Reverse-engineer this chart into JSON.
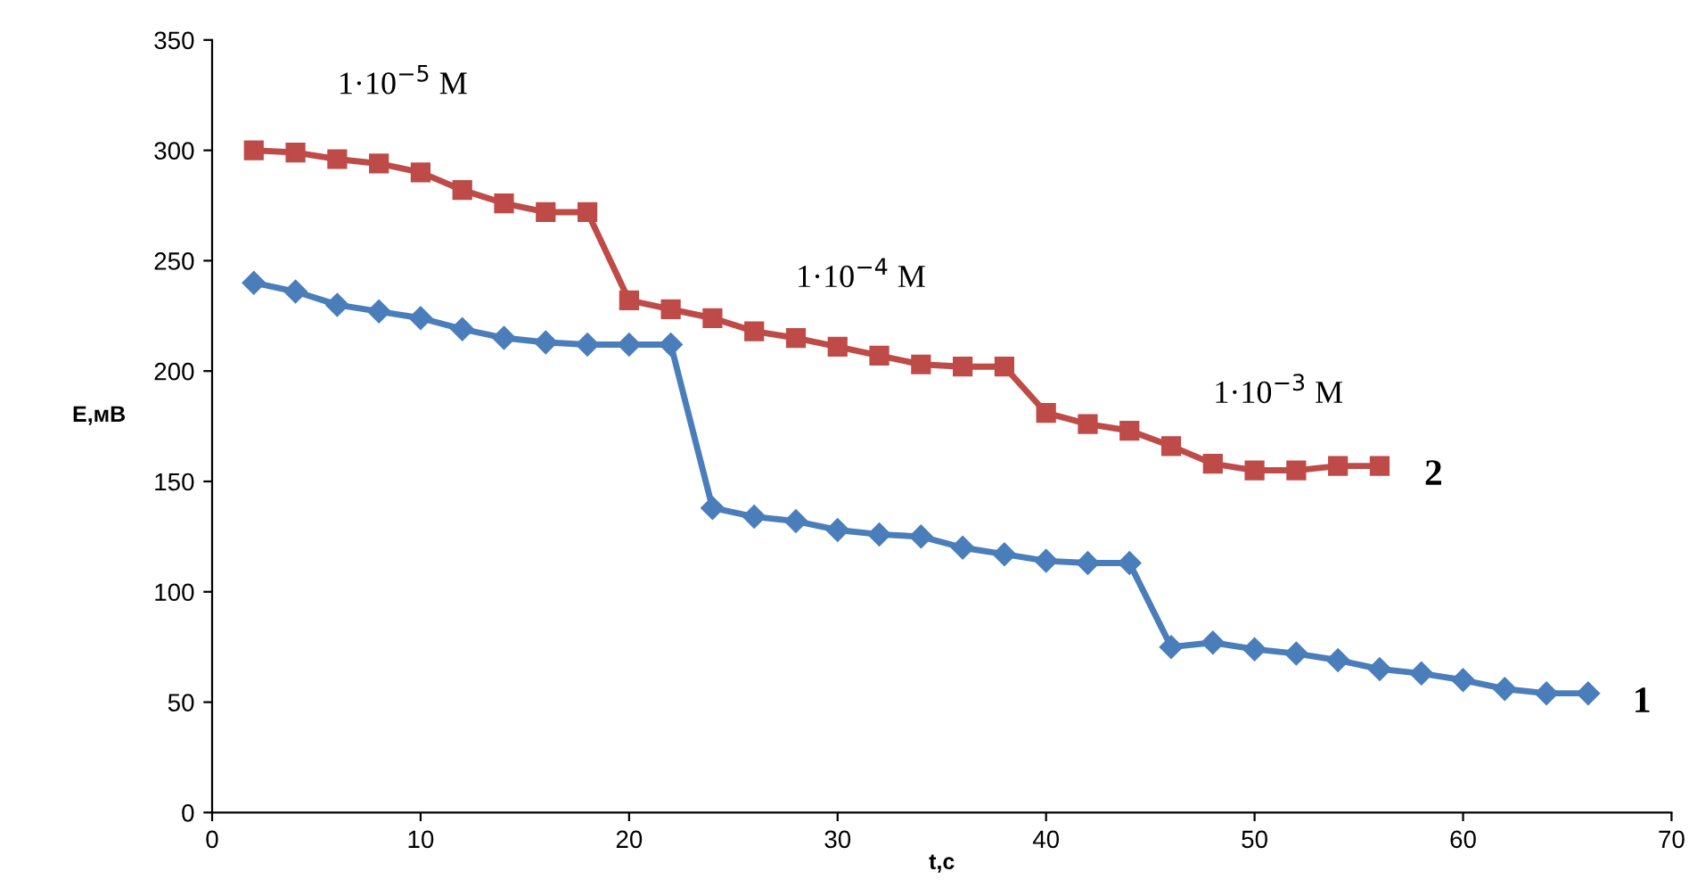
{
  "chart_data": {
    "type": "line",
    "xlabel": "t,c",
    "ylabel": "E,мВ",
    "xlim": [
      0,
      70
    ],
    "xticks": [
      0,
      10,
      20,
      30,
      40,
      50,
      60,
      70
    ],
    "ylim": [
      0,
      350
    ],
    "yticks": [
      0,
      50,
      100,
      150,
      200,
      250,
      300,
      350
    ],
    "grid": false,
    "legend": false,
    "series": [
      {
        "name": "1",
        "color": "#4a7ebb",
        "marker": "diamond",
        "x": [
          2,
          4,
          6,
          8,
          10,
          12,
          14,
          16,
          18,
          20,
          22,
          24,
          26,
          28,
          30,
          32,
          34,
          36,
          38,
          40,
          42,
          44,
          46,
          48,
          50,
          52,
          54,
          56,
          58,
          60,
          62,
          64,
          66
        ],
        "values": [
          240,
          236,
          230,
          227,
          224,
          219,
          215,
          213,
          212,
          212,
          212,
          138,
          134,
          132,
          128,
          126,
          125,
          120,
          117,
          114,
          113,
          113,
          75,
          77,
          74,
          72,
          69,
          65,
          63,
          60,
          56,
          54,
          54
        ]
      },
      {
        "name": "2",
        "color": "#be4b48",
        "marker": "square",
        "x": [
          2,
          4,
          6,
          8,
          10,
          12,
          14,
          16,
          18,
          20,
          22,
          24,
          26,
          28,
          30,
          32,
          34,
          36,
          38,
          40,
          42,
          44,
          46,
          48,
          50,
          52,
          54,
          56
        ],
        "values": [
          300,
          299,
          296,
          294,
          290,
          282,
          276,
          272,
          272,
          232,
          228,
          224,
          218,
          215,
          211,
          207,
          203,
          202,
          202,
          181,
          176,
          173,
          166,
          158,
          155,
          155,
          157,
          157
        ]
      }
    ],
    "annotations": [
      "1·10$^{−5}$ M",
      "1·10$^{−4}$ M",
      "1·10$^{−3}$ M"
    ]
  }
}
